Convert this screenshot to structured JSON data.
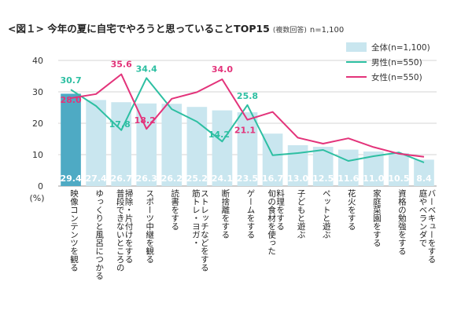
{
  "title": {
    "main": "<図１> 今年の夏に自宅でやろうと思っていることTOP15",
    "note": "(複数回答)",
    "n": "n=1,100"
  },
  "colors": {
    "total_bar": "#c9e6ef",
    "total_bar_first": "#4eaac4",
    "male": "#2dbfa2",
    "female": "#e3337a"
  },
  "chart_data": {
    "type": "bar",
    "ylim": [
      0,
      40
    ],
    "yticks": [
      0,
      10,
      20,
      30,
      40
    ],
    "ylabel": "(%)",
    "grid": true,
    "legend_position": "top-right",
    "categories": [
      "映像コンテンツを観る",
      "ゆっくりと風呂につかる",
      "普段できないところの掃除・片付けをする",
      "スポーツ中継を観る",
      "読書をする",
      "筋トレ・ヨガ・ストレッチなどをする",
      "断捨離をする",
      "ゲームをする",
      "旬の食材を使った料理をする",
      "子どもと遊ぶ",
      "ペットと遊ぶ",
      "花火をする",
      "家庭菜園をする",
      "資格の勉強をする",
      "庭やベランダでバーベキューをする"
    ],
    "category_lines": [
      [
        "映像コンテンツを観る"
      ],
      [
        "ゆっくりと風呂につかる"
      ],
      [
        "普段できないところの",
        "掃除・片付けをする"
      ],
      [
        "スポーツ中継を観る"
      ],
      [
        "読書をする"
      ],
      [
        "筋トレ・ヨガ・",
        "ストレッチなどをする"
      ],
      [
        "断捨離をする"
      ],
      [
        "ゲームをする"
      ],
      [
        "旬の食材を使った",
        "料理をする"
      ],
      [
        "子どもと遊ぶ"
      ],
      [
        "ペットと遊ぶ"
      ],
      [
        "花火をする"
      ],
      [
        "家庭菜園をする"
      ],
      [
        "資格の勉強をする"
      ],
      [
        "庭やベランダで",
        "バーベキューをする"
      ]
    ],
    "series": [
      {
        "name": "全体(n=1,100)",
        "type": "bar",
        "values": [
          29.4,
          27.4,
          26.7,
          26.3,
          26.2,
          25.2,
          24.1,
          23.5,
          16.7,
          13.0,
          12.5,
          11.6,
          11.0,
          10.5,
          8.4
        ]
      },
      {
        "name": "男性(n=550)",
        "type": "line",
        "values": [
          30.7,
          25.5,
          17.8,
          34.4,
          24.5,
          20.5,
          14.2,
          25.8,
          9.8,
          10.5,
          11.5,
          8.0,
          9.5,
          10.7,
          7.5
        ]
      },
      {
        "name": "女性(n=550)",
        "type": "line",
        "values": [
          28.0,
          29.3,
          35.6,
          18.2,
          27.8,
          29.9,
          34.0,
          21.1,
          23.6,
          15.4,
          13.5,
          15.2,
          12.4,
          10.3,
          9.3
        ]
      }
    ],
    "point_labels": {
      "male": [
        {
          "index": 0,
          "text": "30.7"
        },
        {
          "index": 2,
          "text": "17.8"
        },
        {
          "index": 3,
          "text": "34.4"
        },
        {
          "index": 6,
          "text": "14.2"
        },
        {
          "index": 7,
          "text": "25.8"
        }
      ],
      "female": [
        {
          "index": 0,
          "text": "28.0"
        },
        {
          "index": 2,
          "text": "35.6"
        },
        {
          "index": 3,
          "text": "18.2"
        },
        {
          "index": 6,
          "text": "34.0"
        },
        {
          "index": 7,
          "text": "21.1"
        }
      ]
    }
  }
}
